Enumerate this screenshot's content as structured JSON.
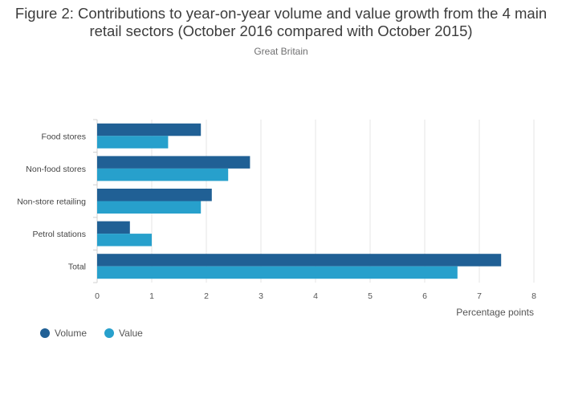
{
  "chart_data": {
    "type": "bar",
    "orientation": "horizontal",
    "title": "Figure 2: Contributions to year-on-year volume and value growth from the 4 main retail sectors (October 2016 compared with October 2015)",
    "subtitle": "Great Britain",
    "categories": [
      "Food stores",
      "Non-food stores",
      "Non-store retailing",
      "Petrol stations",
      "Total"
    ],
    "series": [
      {
        "name": "Volume",
        "color": "#206095",
        "values": [
          1.9,
          2.8,
          2.1,
          0.6,
          7.4
        ]
      },
      {
        "name": "Value",
        "color": "#27a0cc",
        "values": [
          1.3,
          2.4,
          1.9,
          1.0,
          6.6
        ]
      }
    ],
    "xlabel": "Percentage points",
    "xlim": [
      0,
      8
    ],
    "xticks": [
      0,
      1,
      2,
      3,
      4,
      5,
      6,
      7,
      8
    ],
    "grid": true,
    "legend_position": "bottom-left"
  }
}
